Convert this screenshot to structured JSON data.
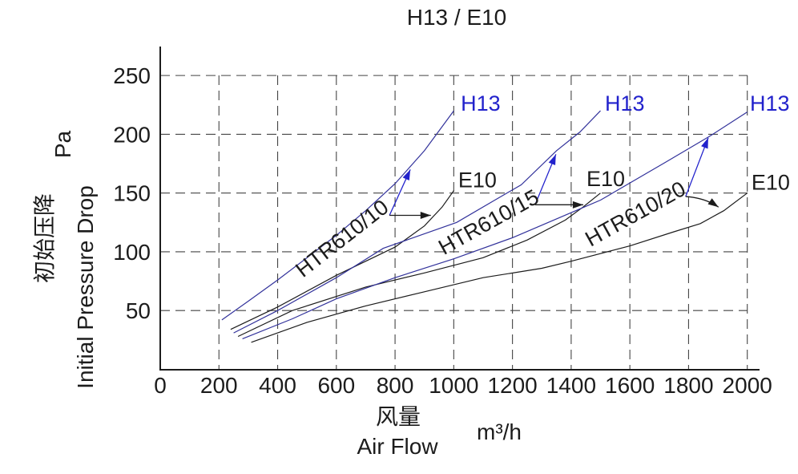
{
  "title": "H13 / E10",
  "axes": {
    "y_unit": "Pa",
    "y_label_zh": "初始压降",
    "y_label_en": "Initial Pressure Drop",
    "x_label_zh": "风量",
    "x_label_en": "Air Flow",
    "x_unit": "m³/h"
  },
  "colors": {
    "blue_label": "#2222cc",
    "blue_curve": "#32329b",
    "black": "#1c1c1c",
    "grid": "#444444"
  },
  "chart_data": {
    "type": "line",
    "title": "H13 / E10",
    "xlabel": "风量 Air Flow (m³/h)",
    "ylabel": "初始压降 Initial Pressure Drop (Pa)",
    "xlim": [
      0,
      2000
    ],
    "ylim": [
      0,
      275
    ],
    "grid": "dashed",
    "x_ticks": [
      0,
      200,
      400,
      600,
      800,
      1000,
      1200,
      1400,
      1600,
      1800,
      2000
    ],
    "y_ticks": [
      50,
      100,
      150,
      200,
      250
    ],
    "series": [
      {
        "name": "HTR610/10 H13",
        "model": "HTR610/10",
        "grade": "H13",
        "color": "blue",
        "points": [
          [
            210,
            42
          ],
          [
            300,
            58
          ],
          [
            400,
            76
          ],
          [
            500,
            95
          ],
          [
            600,
            114
          ],
          [
            700,
            135
          ],
          [
            800,
            158
          ],
          [
            900,
            186
          ],
          [
            1000,
            220
          ]
        ]
      },
      {
        "name": "HTR610/10 E10",
        "model": "HTR610/10",
        "grade": "E10",
        "color": "black",
        "points": [
          [
            240,
            34
          ],
          [
            400,
            53
          ],
          [
            600,
            80
          ],
          [
            800,
            104
          ],
          [
            900,
            122
          ],
          [
            960,
            138
          ],
          [
            1000,
            152
          ]
        ]
      },
      {
        "name": "HTR610/15 H13",
        "model": "HTR610/15",
        "grade": "H13",
        "color": "blue",
        "points": [
          [
            250,
            31
          ],
          [
            400,
            50
          ],
          [
            600,
            78
          ],
          [
            760,
            103
          ],
          [
            1010,
            125
          ],
          [
            1140,
            144
          ],
          [
            1230,
            157
          ],
          [
            1350,
            186
          ],
          [
            1430,
            202
          ],
          [
            1500,
            220
          ]
        ]
      },
      {
        "name": "HTR610/15 E10",
        "model": "HTR610/15",
        "grade": "E10",
        "color": "black",
        "points": [
          [
            265,
            28
          ],
          [
            450,
            50
          ],
          [
            700,
            70
          ],
          [
            900,
            82
          ],
          [
            1100,
            95
          ],
          [
            1250,
            110
          ],
          [
            1380,
            127
          ],
          [
            1440,
            138
          ],
          [
            1500,
            150
          ]
        ]
      },
      {
        "name": "HTR610/20 H13",
        "model": "HTR610/20",
        "grade": "H13",
        "color": "blue",
        "points": [
          [
            280,
            26
          ],
          [
            450,
            43
          ],
          [
            600,
            60
          ],
          [
            800,
            78
          ],
          [
            1000,
            94
          ],
          [
            1200,
            112
          ],
          [
            1350,
            128
          ],
          [
            1500,
            144
          ],
          [
            1720,
            176
          ],
          [
            1870,
            198
          ],
          [
            2000,
            219
          ]
        ]
      },
      {
        "name": "HTR610/20 E10",
        "model": "HTR610/20",
        "grade": "E10",
        "color": "black",
        "points": [
          [
            310,
            23
          ],
          [
            500,
            40
          ],
          [
            700,
            54
          ],
          [
            900,
            66
          ],
          [
            1100,
            78
          ],
          [
            1300,
            86
          ],
          [
            1400,
            92
          ],
          [
            1600,
            105
          ],
          [
            1750,
            117
          ],
          [
            1840,
            124
          ],
          [
            1920,
            135
          ],
          [
            2000,
            150
          ]
        ]
      }
    ],
    "curve_labels": [
      {
        "text": "H13",
        "f": 1024,
        "p": 220,
        "rot": 0,
        "color": "blue"
      },
      {
        "text": "H13",
        "f": 1515,
        "p": 220,
        "rot": 0,
        "color": "blue"
      },
      {
        "text": "H13",
        "f": 2009,
        "p": 220,
        "rot": 0,
        "color": "blue"
      },
      {
        "text": "E10",
        "f": 1015,
        "p": 155,
        "rot": 0,
        "color": "black"
      },
      {
        "text": "E10",
        "f": 1452,
        "p": 156,
        "rot": 0,
        "color": "black"
      },
      {
        "text": "E10",
        "f": 2014,
        "p": 153,
        "rot": 0,
        "color": "black"
      },
      {
        "text": "HTR610/10",
        "f": 486,
        "p": 77.5,
        "rot": -38,
        "color": "black"
      },
      {
        "text": "HTR610/15",
        "f": 966,
        "p": 97,
        "rot": -29,
        "color": "black"
      },
      {
        "text": "HTR610/20",
        "f": 1466,
        "p": 104,
        "rot": -29,
        "color": "black"
      }
    ],
    "arrows": [
      {
        "from": [
          781,
          131
        ],
        "to": [
          852,
          170
        ],
        "color": "blue",
        "bend": null
      },
      {
        "from": [
          1277,
          140
        ],
        "to": [
          1348,
          183
        ],
        "color": "blue",
        "bend": null
      },
      {
        "from": [
          1790,
          147
        ],
        "to": [
          1867,
          197
        ],
        "color": "blue",
        "bend": null
      },
      {
        "from": [
          781,
          131
        ],
        "to": [
          922,
          131
        ],
        "color": "black",
        "bend": null
      },
      {
        "from": [
          1277,
          140
        ],
        "to": [
          1441,
          140
        ],
        "color": "black",
        "bend": null
      },
      {
        "from": [
          1790,
          147
        ],
        "to": [
          1902,
          138
        ],
        "color": "black",
        "bend": [
          1855,
          146
        ]
      }
    ]
  }
}
